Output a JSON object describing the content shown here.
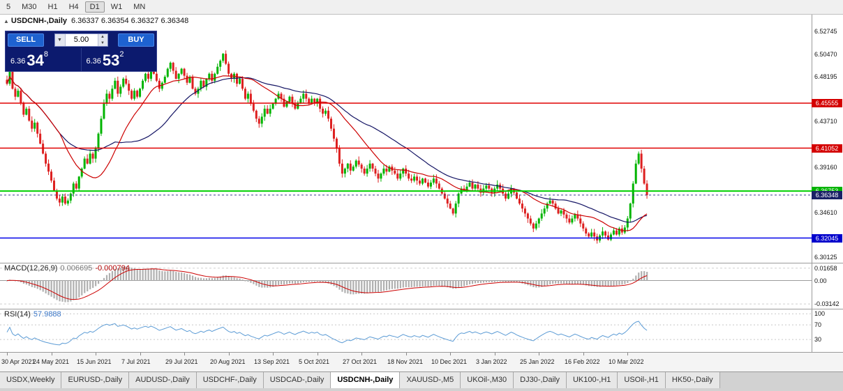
{
  "toolbar": {
    "timeframes": [
      "5",
      "M30",
      "H1",
      "H4",
      "D1",
      "W1",
      "MN"
    ],
    "active_index": 4
  },
  "chart_header": {
    "collapse_glyph": "▲",
    "symbol": "USDCNH-,Daily",
    "ohlc": "6.36337 6.36354 6.36327 6.36348"
  },
  "trade_panel": {
    "sell_label": "SELL",
    "buy_label": "BUY",
    "volume": "5.00",
    "sell_price": {
      "prefix": "6.36",
      "big": "34",
      "sup": "8"
    },
    "buy_price": {
      "prefix": "6.36",
      "big": "53",
      "sup": "2"
    }
  },
  "price_axis": {
    "ticks": [
      {
        "label": "6.52745",
        "price": 6.52745
      },
      {
        "label": "6.50470",
        "price": 6.5047
      },
      {
        "label": "6.48195",
        "price": 6.48195
      },
      {
        "label": "6.43710",
        "price": 6.4371
      },
      {
        "label": "6.39160",
        "price": 6.3916
      },
      {
        "label": "6.34610",
        "price": 6.3461
      },
      {
        "label": "6.30125",
        "price": 6.30125
      }
    ],
    "badges": [
      {
        "label": "6.45555",
        "price": 6.45555,
        "bg": "#d40000"
      },
      {
        "label": "6.41052",
        "price": 6.41052,
        "bg": "#d40000"
      },
      {
        "label": "6.36753",
        "price": 6.36753,
        "bg": "#00b400"
      },
      {
        "label": "6.36348",
        "price": 6.36348,
        "bg": "#1a2066"
      },
      {
        "label": "6.32045",
        "price": 6.32045,
        "bg": "#0000cc"
      }
    ]
  },
  "macd_panel": {
    "title": "MACD(12,26,9)",
    "main_value": "0.006695",
    "signal_value": "-0.000794",
    "axis": [
      {
        "label": "0.01658",
        "value": 0.01658
      },
      {
        "label": "0.00",
        "value": 0
      },
      {
        "label": "-0.03142",
        "value": -0.03142
      }
    ]
  },
  "rsi_panel": {
    "title": "RSI(14)",
    "value": "57.9888",
    "axis": [
      {
        "label": "100",
        "value": 100
      },
      {
        "label": "70",
        "value": 70
      },
      {
        "label": "30",
        "value": 30
      }
    ]
  },
  "time_axis": {
    "labels": [
      "30 Apr 2021",
      "24 May 2021",
      "15 Jun 2021",
      "7 Jul 2021",
      "29 Jul 2021",
      "20 Aug 2021",
      "13 Sep 2021",
      "5 Oct 2021",
      "27 Oct 2021",
      "18 Nov 2021",
      "10 Dec 2021",
      "3 Jan 2022",
      "25 Jan 2022",
      "16 Feb 2022",
      "10 Mar 2022"
    ],
    "candles_per_label": 16
  },
  "tabs": {
    "items": [
      "USDX,Weekly",
      "EURUSD-,Daily",
      "AUDUSD-,Daily",
      "USDCHF-,Daily",
      "USDCAD-,Daily",
      "USDCNH-,Daily",
      "XAUUSD-,M5",
      "UKOil-,M30",
      "DJ30-,Daily",
      "UK100-,H1",
      "USOil-,H1",
      "HK50-,Daily"
    ],
    "active_index": 5
  },
  "chart_data": {
    "type": "candlestick",
    "title": "USDCNH-,Daily",
    "current_ohlc": {
      "open": 6.36337,
      "high": 6.36354,
      "low": 6.36327,
      "close": 6.36348
    },
    "bid": 6.36348,
    "ask": 6.36532,
    "y_range": [
      6.2957,
      6.5442
    ],
    "levels": [
      {
        "price": 6.45555,
        "color": "#e00000"
      },
      {
        "price": 6.41052,
        "color": "#e00000"
      },
      {
        "price": 6.36753,
        "color": "#00d000"
      },
      {
        "price": 6.32045,
        "color": "#0000e8"
      }
    ],
    "current_price": 6.36348,
    "up_color": "#00b400",
    "down_color": "#dd2020",
    "ma_fast": {
      "period": 20,
      "color": "#cc0000"
    },
    "ma_slow": {
      "period": 40,
      "color": "#141464"
    },
    "macd": {
      "fast": 12,
      "slow": 26,
      "signal": 9,
      "range": [
        -0.03142,
        0.01658
      ],
      "histogram_color": "#b0b0b0",
      "signal_color": "#cc0000"
    },
    "rsi": {
      "period": 14,
      "color": "#5b9bd5",
      "levels": [
        30,
        70
      ],
      "range": [
        0,
        100
      ]
    },
    "closes": [
      6.475,
      6.489,
      6.47,
      6.462,
      6.468,
      6.456,
      6.444,
      6.45,
      6.438,
      6.43,
      6.436,
      6.425,
      6.415,
      6.405,
      6.395,
      6.387,
      6.378,
      6.368,
      6.36,
      6.356,
      6.362,
      6.355,
      6.358,
      6.365,
      6.375,
      6.37,
      6.382,
      6.39,
      6.4,
      6.395,
      6.405,
      6.4,
      6.41,
      6.425,
      6.44,
      6.455,
      6.465,
      6.46,
      6.47,
      6.478,
      6.465,
      6.472,
      6.48,
      6.475,
      6.468,
      6.46,
      6.468,
      6.462,
      6.47,
      6.478,
      6.485,
      6.48,
      6.49,
      6.485,
      6.478,
      6.47,
      6.476,
      6.482,
      6.49,
      6.496,
      6.488,
      6.48,
      6.485,
      6.49,
      6.483,
      6.476,
      6.482,
      6.47,
      6.465,
      6.47,
      6.478,
      6.472,
      6.48,
      6.485,
      6.478,
      6.485,
      6.492,
      6.498,
      6.505,
      6.495,
      6.485,
      6.48,
      6.485,
      6.475,
      6.48,
      6.47,
      6.46,
      6.465,
      6.455,
      6.448,
      6.44,
      6.435,
      6.442,
      6.45,
      6.445,
      6.45,
      6.455,
      6.46,
      6.465,
      6.46,
      6.452,
      6.457,
      6.462,
      6.455,
      6.45,
      6.456,
      6.46,
      6.465,
      6.46,
      6.455,
      6.46,
      6.456,
      6.46,
      6.45,
      6.445,
      6.448,
      6.44,
      6.43,
      6.42,
      6.41,
      6.395,
      6.385,
      6.39,
      6.395,
      6.388,
      6.392,
      6.398,
      6.394,
      6.39,
      6.385,
      6.39,
      6.395,
      6.39,
      6.385,
      6.38,
      6.385,
      6.39,
      6.387,
      6.392,
      6.388,
      6.385,
      6.38,
      6.385,
      6.39,
      6.385,
      6.38,
      6.378,
      6.382,
      6.378,
      6.375,
      6.38,
      6.376,
      6.372,
      6.376,
      6.38,
      6.375,
      6.37,
      6.365,
      6.36,
      6.355,
      6.35,
      6.345,
      6.355,
      6.365,
      6.37,
      6.368,
      6.372,
      6.376,
      6.37,
      6.374,
      6.37,
      6.366,
      6.37,
      6.373,
      6.37,
      6.366,
      6.37,
      6.374,
      6.37,
      6.365,
      6.36,
      6.365,
      6.37,
      6.366,
      6.36,
      6.355,
      6.35,
      6.345,
      6.34,
      6.335,
      6.33,
      6.335,
      6.34,
      6.345,
      6.35,
      6.355,
      6.358,
      6.355,
      6.35,
      6.345,
      6.348,
      6.344,
      6.34,
      6.336,
      6.34,
      6.344,
      6.34,
      6.335,
      6.33,
      6.325,
      6.322,
      6.326,
      6.322,
      6.318,
      6.323,
      6.327,
      6.323,
      6.319,
      6.324,
      6.328,
      6.324,
      6.33,
      6.326,
      6.331,
      6.34,
      6.355,
      6.375,
      6.395,
      6.405,
      6.39,
      6.375,
      6.36348
    ]
  }
}
